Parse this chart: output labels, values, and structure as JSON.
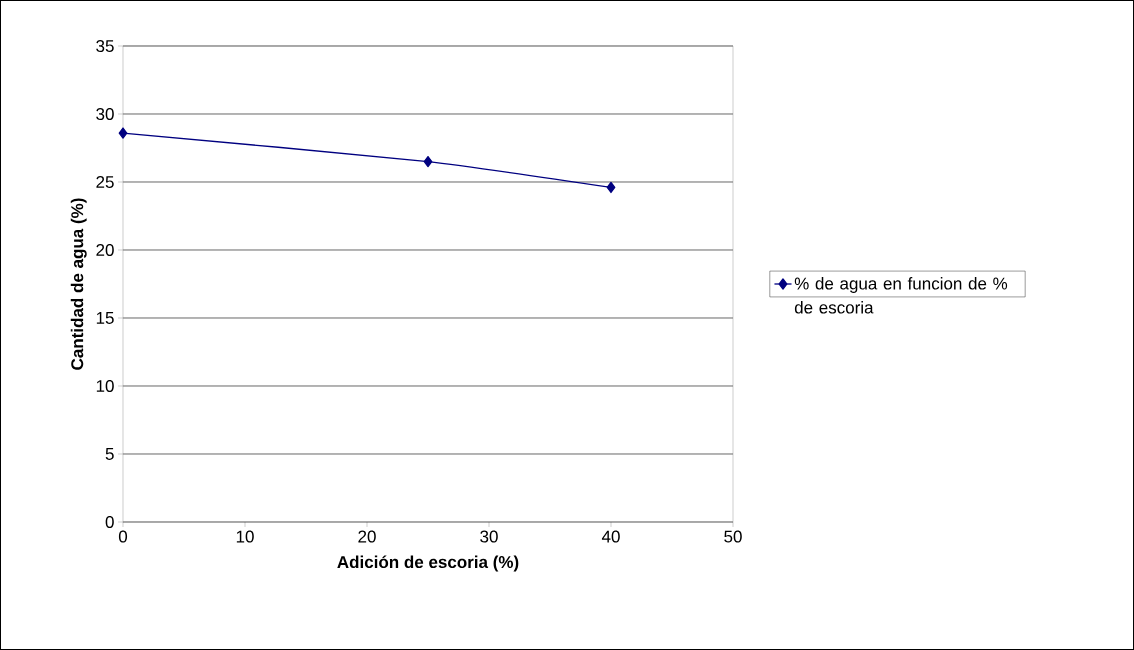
{
  "chart_data": {
    "type": "line",
    "xlabel": "Adición de escoria (%)",
    "ylabel": "Cantidad de agua (%)",
    "x": [
      0,
      25,
      40
    ],
    "series": [
      {
        "name": "% de agua en funcion de % de escoria",
        "color": "#000080",
        "values": [
          28.6,
          26.5,
          24.6
        ]
      }
    ],
    "xlim": [
      0,
      50
    ],
    "ylim": [
      0,
      35
    ],
    "xticks": [
      0,
      10,
      20,
      30,
      40,
      50
    ],
    "yticks": [
      0,
      5,
      10,
      15,
      20,
      25,
      30,
      35
    ],
    "grid": "y",
    "legend": "right",
    "marker": "diamond",
    "line_style": "solid"
  }
}
